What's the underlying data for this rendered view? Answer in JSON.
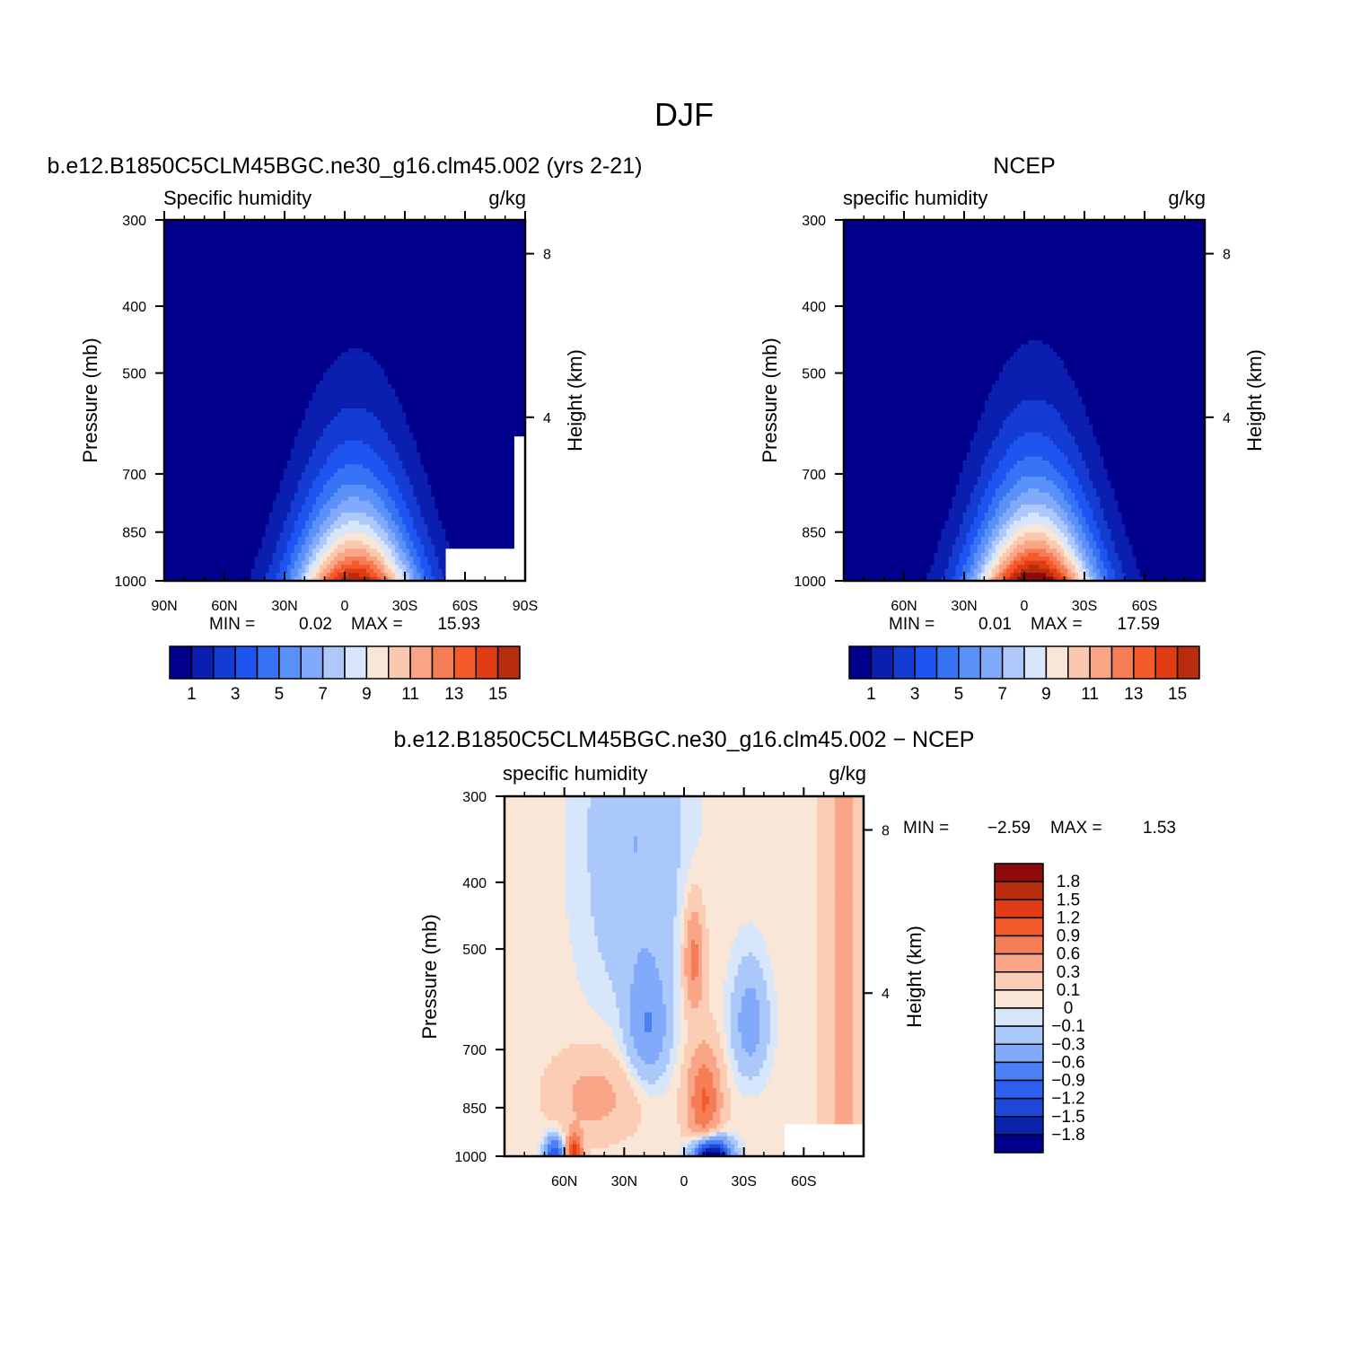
{
  "page_title": "DJF",
  "colors": {
    "sequential": [
      "#00008c",
      "#0a1eb0",
      "#143cd2",
      "#1e55f0",
      "#3773f5",
      "#5a91f8",
      "#82aafa",
      "#afc8fa",
      "#d7e6fa",
      "#fae6d7",
      "#fac8af",
      "#faa587",
      "#f57d55",
      "#f55a2d",
      "#e13c14",
      "#b92d0f",
      "#8c0a0a"
    ],
    "diverging": [
      "#00008c",
      "#0a23aa",
      "#1e46d7",
      "#2d5ff0",
      "#4b80f5",
      "#82aafa",
      "#aac8fa",
      "#d7e6fa",
      "#fae6d7",
      "#facdb4",
      "#faa587",
      "#f57d55",
      "#f55a2d",
      "#e13c14",
      "#b92d0f",
      "#8c0a0a"
    ]
  },
  "chart_data": [
    {
      "type": "heatmap",
      "title": "b.e12.B1850C5CLM45BGC.ne30_g16.clm45.002 (yrs 2-21)",
      "left_string": "Specific humidity",
      "right_string": "g/kg",
      "ylabel": "Pressure (mb)",
      "ylabel_right": "Height (km)",
      "x_ticks": [
        "90N",
        "60N",
        "30N",
        "0",
        "30S",
        "60S",
        "90S"
      ],
      "y_ticks": [
        "300",
        "400",
        "500",
        "700",
        "850",
        "1000"
      ],
      "height_ticks": [
        "8",
        "4"
      ],
      "min_label": "MIN =",
      "min_value": "0.02",
      "max_label": "MAX =",
      "max_value": "15.93",
      "levels": [
        "1",
        "3",
        "5",
        "7",
        "9",
        "11",
        "13",
        "15"
      ],
      "lat_range": [
        90,
        -90
      ],
      "pressure_range": [
        300,
        1000
      ],
      "peak_lat": -5,
      "peak_value": 15.93
    },
    {
      "type": "heatmap",
      "title": "NCEP",
      "left_string": "specific humidity",
      "right_string": "g/kg",
      "ylabel": "Pressure (mb)",
      "ylabel_right": "Height (km)",
      "x_ticks": [
        "60N",
        "30N",
        "0",
        "30S",
        "60S"
      ],
      "y_ticks": [
        "300",
        "400",
        "500",
        "700",
        "850",
        "1000"
      ],
      "height_ticks": [
        "8",
        "4"
      ],
      "min_label": "MIN =",
      "min_value": "0.01",
      "max_label": "MAX =",
      "max_value": "17.59",
      "levels": [
        "1",
        "3",
        "5",
        "7",
        "9",
        "11",
        "13",
        "15"
      ],
      "lat_range": [
        90,
        -90
      ],
      "pressure_range": [
        300,
        1000
      ],
      "peak_lat": -5,
      "peak_value": 17.59
    },
    {
      "type": "heatmap",
      "title": "b.e12.B1850C5CLM45BGC.ne30_g16.clm45.002 − NCEP",
      "left_string": "specific humidity",
      "right_string": "g/kg",
      "ylabel": "Pressure (mb)",
      "ylabel_right": "Height (km)",
      "x_ticks": [
        "60N",
        "30N",
        "0",
        "30S",
        "60S"
      ],
      "y_ticks": [
        "300",
        "400",
        "500",
        "700",
        "850",
        "1000"
      ],
      "height_ticks": [
        "8",
        "4"
      ],
      "min_label": "MIN =",
      "min_value": "−2.59",
      "max_label": "MAX =",
      "max_value": "1.53",
      "levels": [
        "1.8",
        "1.5",
        "1.2",
        "0.9",
        "0.6",
        "0.3",
        "0.1",
        "0",
        "−0.1",
        "−0.3",
        "−0.6",
        "−0.9",
        "−1.2",
        "−1.5",
        "−1.8"
      ],
      "lat_range": [
        90,
        -90
      ],
      "pressure_range": [
        300,
        1000
      ]
    }
  ]
}
